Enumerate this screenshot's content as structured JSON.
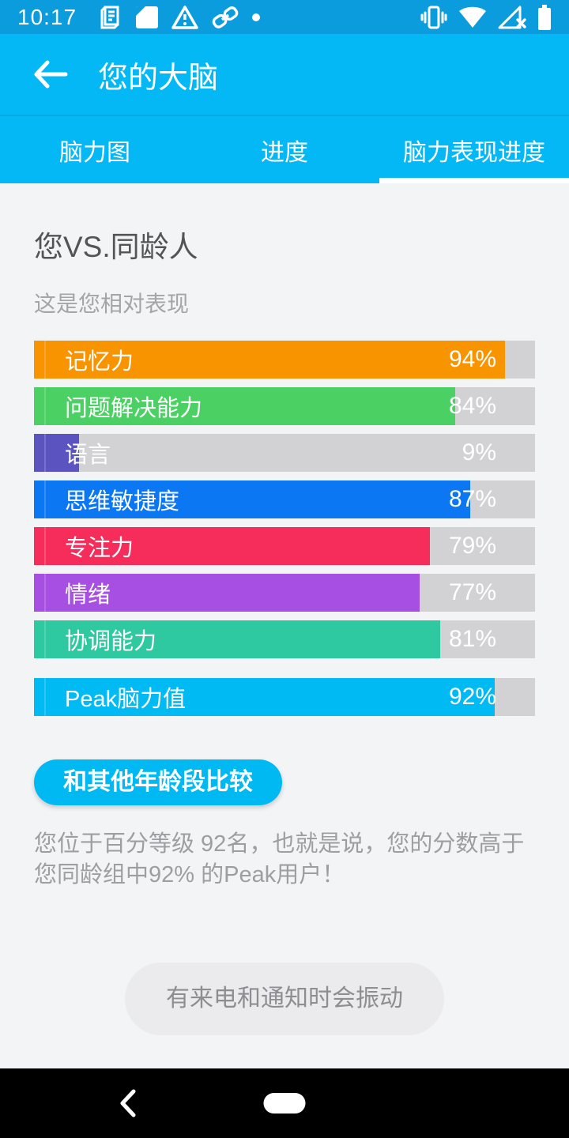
{
  "status_bar": {
    "time": "10:17",
    "left_icons": [
      "notes-notification-icon",
      "screenshot-notification-icon",
      "warning-notification-icon",
      "link-notification-icon",
      "more-notifications-dot"
    ],
    "right_icons": [
      "vibrate-icon",
      "wifi-icon",
      "no-signal-icon",
      "battery-icon"
    ]
  },
  "app_bar": {
    "title": "您的大脑"
  },
  "tabs": [
    {
      "label": "脑力图",
      "active": false
    },
    {
      "label": "进度",
      "active": false
    },
    {
      "label": "脑力表现进度",
      "active": true
    }
  ],
  "content": {
    "heading": "您VS.同龄人",
    "subheading": "这是您相对表现",
    "compare_button_label": "和其他年龄段比较",
    "percentile_text": "您位于百分等级 92名，也就是说，您的分数高于您同龄组中92% 的Peak用户！"
  },
  "chart_data": {
    "type": "bar",
    "orientation": "horizontal",
    "categories": [
      "记忆力",
      "问题解决能力",
      "语言",
      "思维敏捷度",
      "专注力",
      "情绪",
      "协调能力",
      "Peak脑力值"
    ],
    "values": [
      94,
      84,
      9,
      87,
      79,
      77,
      81,
      92
    ],
    "value_labels": [
      "94%",
      "84%",
      "9%",
      "87%",
      "79%",
      "77%",
      "81%",
      "92%"
    ],
    "colors": [
      "#F79400",
      "#4BD163",
      "#5A53C0",
      "#0B77F3",
      "#F62D5B",
      "#A74FE3",
      "#2EC9A0",
      "#00BBF3"
    ],
    "track_color": "#D2D2D4",
    "xlim": [
      0,
      100
    ],
    "title": "您VS.同龄人",
    "legend": "none",
    "grid": false
  },
  "toast": {
    "message": "有来电和通知时会振动"
  },
  "colors": {
    "status_bar_bg": "#0A9CDC",
    "app_bar_bg": "#03B8F4",
    "accent": "#00B9F2",
    "page_bg": "#F3F4F6",
    "nav_bar_bg": "#000000"
  }
}
